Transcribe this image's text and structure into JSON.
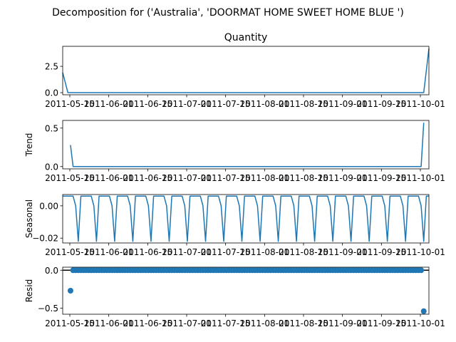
{
  "suptitle": "Decomposition for ('Australia', 'DOORMAT HOME SWEET HOME BLUE ')",
  "chart_data": [
    {
      "type": "line",
      "title": "Quantity",
      "ylabel": "",
      "x": [
        "2011-05-18",
        "2011-05-20",
        "2011-10-04",
        "2011-10-06"
      ],
      "y": [
        1.9,
        0,
        0,
        4.2
      ],
      "xlim": [
        "2011-05-18",
        "2011-10-06"
      ],
      "ylim": [
        -0.2,
        4.4
      ],
      "yticks": [
        {
          "v": 0,
          "label": "0.0"
        },
        {
          "v": 2.5,
          "label": "2.5"
        }
      ],
      "xtick_labels": [
        "2011-05-15",
        "2011-06-01",
        "2011-06-15",
        "2011-07-01",
        "2011-07-15",
        "2011-08-01",
        "2011-08-15",
        "2011-09-01",
        "2011-09-15",
        "2011-10-01"
      ]
    },
    {
      "type": "line",
      "title": "",
      "ylabel": "Trend",
      "x": [
        "2011-05-21",
        "2011-05-22",
        "2011-10-03",
        "2011-10-04"
      ],
      "y": [
        0.28,
        0,
        0,
        0.57
      ],
      "xlim": [
        "2011-05-18",
        "2011-10-06"
      ],
      "ylim": [
        -0.03,
        0.6
      ],
      "yticks": [
        {
          "v": 0,
          "label": "0.0"
        },
        {
          "v": 0.5,
          "label": "0.5"
        }
      ],
      "xtick_labels": [
        "2011-05-15",
        "2011-06-01",
        "2011-06-15",
        "2011-07-01",
        "2011-07-15",
        "2011-08-01",
        "2011-08-15",
        "2011-09-01",
        "2011-09-15",
        "2011-10-01"
      ]
    },
    {
      "type": "line",
      "title": "",
      "ylabel": "Seasonal",
      "period_days": 7,
      "pattern": [
        0.006,
        0.006,
        0.006,
        0.006,
        0.006,
        0.0,
        -0.022
      ],
      "start": "2011-05-18",
      "end": "2011-10-06",
      "xlim": [
        "2011-05-18",
        "2011-10-06"
      ],
      "ylim": [
        -0.023,
        0.007
      ],
      "yticks": [
        {
          "v": 0.0,
          "label": "0.00"
        },
        {
          "v": -0.02,
          "label": "−0.02"
        }
      ],
      "xtick_labels": [
        "2011-05-15",
        "2011-06-01",
        "2011-06-15",
        "2011-07-01",
        "2011-07-15",
        "2011-08-01",
        "2011-08-15",
        "2011-09-01",
        "2011-09-15",
        "2011-10-01"
      ]
    },
    {
      "type": "scatter",
      "title": "",
      "ylabel": "Resid",
      "start": "2011-05-21",
      "end": "2011-10-04",
      "baseline_value": 0.0,
      "outliers": [
        {
          "x": "2011-05-21",
          "y": -0.27
        },
        {
          "x": "2011-10-04",
          "y": -0.54
        }
      ],
      "xlim": [
        "2011-05-18",
        "2011-10-06"
      ],
      "ylim": [
        -0.58,
        0.04
      ],
      "yticks": [
        {
          "v": 0.0,
          "label": "0.0"
        },
        {
          "v": -0.5,
          "label": "−0.5"
        }
      ],
      "xtick_labels": [
        "2011-05-15",
        "2011-06-01",
        "2011-06-15",
        "2011-07-01",
        "2011-07-15",
        "2011-08-01",
        "2011-08-15",
        "2011-09-01",
        "2011-09-15",
        "2011-10-01"
      ]
    }
  ]
}
